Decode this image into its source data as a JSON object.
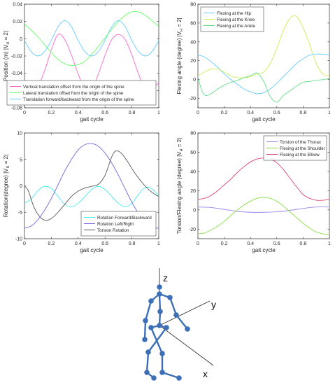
{
  "chart_data": [
    {
      "type": "line",
      "id": "p1",
      "xlabel": "gait cycle",
      "ylabel": "Position (m) |V",
      "ylabel_sub": "H",
      "ylabel_tail": " = 2|",
      "xlim": [
        0,
        1
      ],
      "ylim": [
        -0.08,
        0.04
      ],
      "xticks": [
        0,
        0.2,
        0.4,
        0.6,
        0.8,
        1
      ],
      "yticks": [
        -0.08,
        -0.06,
        -0.04,
        -0.02,
        0,
        0.02,
        0.04
      ],
      "xtick_labels": [
        "0",
        "0.2",
        "0.4",
        "0.6",
        "0.8",
        "1"
      ],
      "ytick_labels": [
        "-0.08",
        "-0.06",
        "-0.04",
        "-0.02",
        "0",
        "0.02",
        "0.04"
      ],
      "legend_position": "bottom-right",
      "series": [
        {
          "name": "Vertical translation offset from the origin of the spine",
          "color": "#ff66cc",
          "x": [
            0,
            0.05,
            0.1,
            0.15,
            0.2,
            0.25,
            0.3,
            0.35,
            0.4,
            0.45,
            0.5,
            0.55,
            0.6,
            0.65,
            0.7,
            0.75,
            0.8,
            0.85,
            0.9,
            0.95,
            1
          ],
          "y": [
            -0.051,
            -0.06,
            -0.055,
            -0.037,
            -0.013,
            0.005,
            -0.001,
            -0.019,
            -0.041,
            -0.058,
            -0.058,
            -0.041,
            -0.019,
            -0.001,
            0.005,
            -0.001,
            -0.019,
            -0.041,
            -0.058,
            -0.058,
            -0.051
          ]
        },
        {
          "name": "Lateral translation offset from the origin of the spine",
          "color": "#66ff66",
          "x": [
            0,
            0.05,
            0.1,
            0.15,
            0.2,
            0.25,
            0.3,
            0.35,
            0.4,
            0.45,
            0.5,
            0.55,
            0.6,
            0.65,
            0.7,
            0.75,
            0.8,
            0.85,
            0.9,
            0.95,
            1
          ],
          "y": [
            0.017,
            0.01,
            0.002,
            -0.007,
            -0.016,
            -0.024,
            -0.029,
            -0.031,
            -0.03,
            -0.026,
            -0.018,
            -0.009,
            0.001,
            0.011,
            0.02,
            0.027,
            0.031,
            0.031,
            0.027,
            0.021,
            0.014
          ]
        },
        {
          "name": "Translation forward/backward from the origin of the spine",
          "color": "#66ccff",
          "x": [
            0,
            0.05,
            0.1,
            0.15,
            0.2,
            0.25,
            0.3,
            0.35,
            0.4,
            0.45,
            0.5,
            0.55,
            0.6,
            0.65,
            0.7,
            0.75,
            0.8,
            0.85,
            0.9,
            0.95,
            1
          ],
          "y": [
            -0.002,
            -0.015,
            -0.02,
            -0.015,
            -0.002,
            0.014,
            0.021,
            0.014,
            -0.002,
            -0.015,
            -0.02,
            -0.015,
            -0.002,
            0.014,
            0.021,
            0.014,
            -0.002,
            -0.015,
            -0.02,
            -0.015,
            -0.002
          ]
        }
      ]
    },
    {
      "type": "line",
      "id": "p2",
      "xlabel": "gait cycle",
      "ylabel": "Flexing angle (degree) |V",
      "ylabel_sub": "H",
      "ylabel_tail": " = 2|",
      "xlim": [
        0,
        1
      ],
      "ylim": [
        -30,
        80
      ],
      "xticks": [
        0,
        0.2,
        0.4,
        0.6,
        0.8,
        1
      ],
      "yticks": [
        -20,
        0,
        20,
        40,
        60,
        80
      ],
      "xtick_labels": [
        "0",
        "0.2",
        "0.4",
        "0.6",
        "0.8",
        "1"
      ],
      "ytick_labels": [
        "-20",
        "0",
        "20",
        "40",
        "60",
        "80"
      ],
      "legend_position": "top-left",
      "series": [
        {
          "name": "Flexing at the Hip",
          "color": "#66ccff",
          "x": [
            0,
            0.05,
            0.1,
            0.15,
            0.2,
            0.25,
            0.3,
            0.35,
            0.4,
            0.45,
            0.5,
            0.55,
            0.6,
            0.65,
            0.7,
            0.75,
            0.8,
            0.85,
            0.9,
            0.95,
            1
          ],
          "y": [
            26,
            24,
            19,
            13,
            6,
            0,
            -5,
            -10,
            -13,
            -15,
            -14,
            -10,
            -4,
            3,
            10,
            17,
            22,
            26,
            27,
            27,
            26
          ]
        },
        {
          "name": "Flexing at the Knee",
          "color": "#ccee55",
          "x": [
            0,
            0.05,
            0.1,
            0.15,
            0.2,
            0.25,
            0.3,
            0.35,
            0.4,
            0.45,
            0.5,
            0.55,
            0.6,
            0.65,
            0.7,
            0.75,
            0.8,
            0.85,
            0.9,
            0.95,
            1
          ],
          "y": [
            4,
            8,
            11,
            11,
            8,
            4,
            2,
            2,
            3,
            6,
            8,
            17,
            33,
            52,
            65,
            67,
            55,
            37,
            17,
            6,
            4
          ]
        },
        {
          "name": "Flexing at the Ankle",
          "color": "#66dd88",
          "x": [
            0,
            0.03,
            0.06,
            0.1,
            0.15,
            0.2,
            0.25,
            0.3,
            0.35,
            0.4,
            0.45,
            0.5,
            0.55,
            0.6,
            0.65,
            0.7,
            0.75,
            0.8,
            0.85,
            0.9,
            0.95,
            1
          ],
          "y": [
            3,
            -12,
            -17,
            -15,
            -10,
            -6,
            -3,
            -1,
            2,
            4,
            7,
            -2,
            -18,
            -24,
            -17,
            -12,
            -7,
            -3,
            -2,
            -1,
            0,
            1
          ]
        }
      ]
    },
    {
      "type": "line",
      "id": "p3",
      "xlabel": "gait cycle",
      "ylabel": "Rotation(degree) |V",
      "ylabel_sub": "H",
      "ylabel_tail": " = 2|",
      "xlim": [
        0,
        1
      ],
      "ylim": [
        -10,
        10
      ],
      "xticks": [
        0,
        0.2,
        0.4,
        0.6,
        0.8,
        1
      ],
      "yticks": [
        -10,
        -5,
        0,
        5,
        10
      ],
      "xtick_labels": [
        "0",
        "0.2",
        "0.4",
        "0.6",
        "0.8",
        "1"
      ],
      "ytick_labels": [
        "-10",
        "-5",
        "0",
        "5",
        "10"
      ],
      "legend_position": "bottom-right",
      "series": [
        {
          "name": "Rotation Forward/Backward",
          "color": "#44eeee",
          "x": [
            0,
            0.05,
            0.1,
            0.15,
            0.2,
            0.25,
            0.3,
            0.35,
            0.4,
            0.45,
            0.5,
            0.55,
            0.6,
            0.65,
            0.7,
            0.75,
            0.8,
            0.85,
            0.9,
            0.95,
            1
          ],
          "y": [
            -3.3,
            -2.5,
            -0.9,
            -0.1,
            -0.5,
            -2.0,
            -3.5,
            -4.0,
            -3.3,
            -2.0,
            -0.7,
            -0.1,
            -0.7,
            -2.0,
            -3.3,
            -4.0,
            -3.3,
            -1.6,
            -0.3,
            -0.6,
            -2.0
          ]
        },
        {
          "name": "Rotation Left/Right",
          "color": "#7766dd",
          "x": [
            0,
            0.05,
            0.1,
            0.15,
            0.2,
            0.25,
            0.3,
            0.35,
            0.4,
            0.45,
            0.5,
            0.55,
            0.6,
            0.65,
            0.7,
            0.75,
            0.8,
            0.85,
            0.9,
            0.95,
            1
          ],
          "y": [
            -8,
            -7.6,
            -6.4,
            -4.6,
            -2.4,
            0.2,
            2.8,
            5.0,
            6.8,
            7.8,
            8.0,
            7.5,
            6.2,
            4.3,
            2.0,
            -0.6,
            -3.1,
            -5.3,
            -7.0,
            -7.9,
            -8.0
          ]
        },
        {
          "name": "Torsion Rotation",
          "color": "#555555",
          "x": [
            0,
            0.03,
            0.07,
            0.12,
            0.16,
            0.2,
            0.25,
            0.3,
            0.35,
            0.4,
            0.45,
            0.5,
            0.55,
            0.6,
            0.65,
            0.68,
            0.72,
            0.77,
            0.82,
            0.88,
            0.93,
            0.97,
            1
          ],
          "y": [
            0,
            -1.0,
            -4.0,
            -6.0,
            -6.5,
            -6.2,
            -5.0,
            -3.5,
            -2.0,
            -1.0,
            -0.4,
            -0.1,
            0.3,
            2.0,
            5.5,
            6.6,
            6.2,
            4.5,
            2.5,
            0.5,
            -0.8,
            -1.6,
            -2.0
          ]
        }
      ]
    },
    {
      "type": "line",
      "id": "p4",
      "xlabel": "gait cycle",
      "ylabel": "Torsion/Flexing angle (degree) |V",
      "ylabel_sub": "H",
      "ylabel_tail": " = 2|",
      "xlim": [
        0,
        1
      ],
      "ylim": [
        -30,
        80
      ],
      "xticks": [
        0,
        0.2,
        0.4,
        0.6,
        0.8,
        1
      ],
      "yticks": [
        -20,
        0,
        20,
        40,
        60,
        80
      ],
      "xtick_labels": [
        "0",
        "0.2",
        "0.4",
        "0.6",
        "0.8",
        "1"
      ],
      "ytick_labels": [
        "-20",
        "0",
        "20",
        "40",
        "60",
        "80"
      ],
      "legend_position": "top-right",
      "series": [
        {
          "name": "Torsion of the Thorax",
          "color": "#9988ee",
          "x": [
            0,
            0.1,
            0.2,
            0.3,
            0.4,
            0.5,
            0.6,
            0.7,
            0.8,
            0.9,
            1
          ],
          "y": [
            3,
            2.5,
            0.5,
            -1.5,
            -2.5,
            -2.5,
            -2,
            -0.5,
            1.5,
            3,
            3
          ]
        },
        {
          "name": "Flexing at the Shoulder",
          "color": "#88dd44",
          "x": [
            0,
            0.05,
            0.1,
            0.15,
            0.2,
            0.25,
            0.3,
            0.35,
            0.4,
            0.45,
            0.5,
            0.55,
            0.6,
            0.65,
            0.7,
            0.75,
            0.8,
            0.85,
            0.9,
            0.95,
            1
          ],
          "y": [
            -25,
            -24,
            -21,
            -17,
            -12,
            -6,
            0,
            5,
            9,
            12,
            13,
            12,
            9,
            4,
            -2,
            -8,
            -14,
            -19,
            -23,
            -25,
            -26
          ]
        },
        {
          "name": "Flexing at the Elbow",
          "color": "#dd4477",
          "x": [
            0,
            0.05,
            0.1,
            0.15,
            0.2,
            0.25,
            0.3,
            0.35,
            0.4,
            0.45,
            0.5,
            0.55,
            0.6,
            0.65,
            0.7,
            0.75,
            0.8,
            0.85,
            0.9,
            0.95,
            1
          ],
          "y": [
            11,
            12,
            15,
            20,
            26,
            32,
            39,
            45,
            50,
            53,
            54,
            53,
            49,
            42,
            33,
            24,
            16,
            12,
            10,
            10,
            11
          ]
        }
      ]
    }
  ],
  "skeleton": {
    "axis_labels": {
      "x": "x",
      "y": "y",
      "z": "z"
    },
    "colors": {
      "bone": "#3d6fb6",
      "joint": "#3d6fb6",
      "axis": "#333333"
    }
  }
}
